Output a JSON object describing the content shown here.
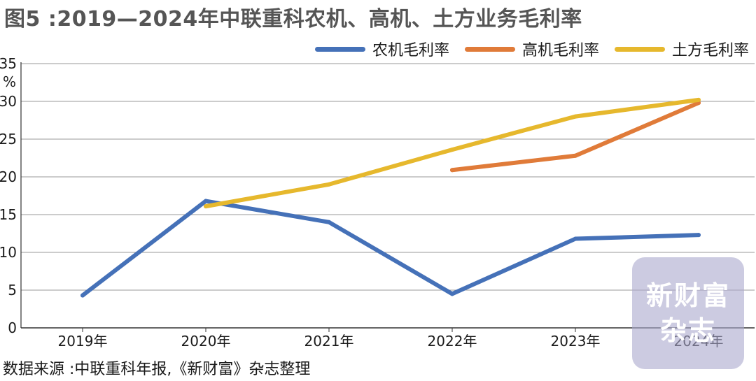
{
  "figure": {
    "title": "图5 :2019—2024年中联重科农机、高机、土方业务毛利率",
    "source": "数据来源 :中联重科年报,《新财富》杂志整理",
    "watermark": [
      "新财富",
      "杂志"
    ]
  },
  "chart_data": {
    "type": "line",
    "title": "图5 :2019—2024年中联重科农机、高机、土方业务毛利率",
    "xlabel": "",
    "ylabel": "%",
    "categories": [
      "2019年",
      "2020年",
      "2021年",
      "2022年",
      "2023年",
      "2024年"
    ],
    "ylim": [
      0,
      35
    ],
    "yticks": [
      0,
      5,
      10,
      15,
      20,
      25,
      30,
      35
    ],
    "grid": "horizontal",
    "legend_position": "top-right",
    "series": [
      {
        "name": "农机毛利率",
        "color": "#4571b8",
        "values": [
          4.3,
          16.8,
          14.0,
          4.5,
          11.8,
          12.3
        ]
      },
      {
        "name": "高机毛利率",
        "color": "#e07b39",
        "values": [
          null,
          null,
          null,
          20.9,
          22.8,
          29.8
        ]
      },
      {
        "name": "土方毛利率",
        "color": "#e6b82d",
        "values": [
          null,
          16.1,
          19.0,
          23.6,
          28.0,
          30.2
        ]
      }
    ]
  }
}
